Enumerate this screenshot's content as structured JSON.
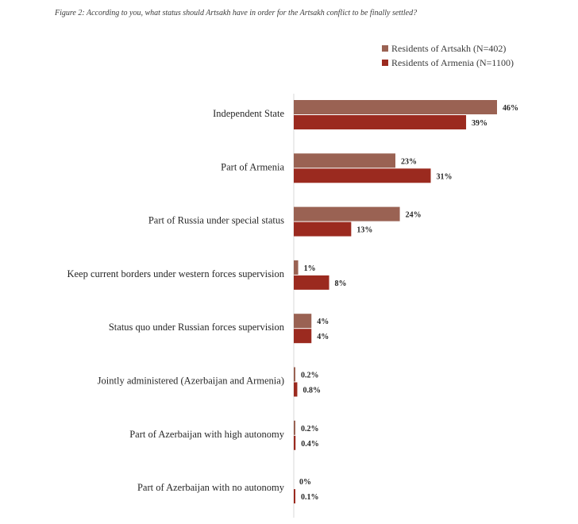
{
  "title": "Figure 2: According to you, what status should Artsakh have in order for the Artsakh conflict to be finally settled?",
  "chart_data": {
    "type": "bar",
    "orientation": "horizontal",
    "title": "Figure 2: According to you, what status should Artsakh have in order for the Artsakh conflict to be finally settled?",
    "categories": [
      "Independent State",
      "Part of Armenia",
      "Part of Russia under special status",
      "Keep current borders under western forces supervision",
      "Status quo under Russian forces supervision",
      "Jointly administered (Azerbaijan and Armenia)",
      "Part of Azerbaijan with high autonomy",
      "Part of Azerbaijan with no autonomy"
    ],
    "series": [
      {
        "name": "Residents of Artsakh (N=402)",
        "color": "#9a6253",
        "values": [
          46,
          23,
          24,
          1,
          4,
          0.2,
          0.2,
          0
        ],
        "labels": [
          "46%",
          "23%",
          "24%",
          "1%",
          "4%",
          "0.2%",
          "0.2%",
          "0%"
        ]
      },
      {
        "name": "Residents of Armenia (N=1100)",
        "color": "#9b2a1f",
        "values": [
          39,
          31,
          13,
          8,
          4,
          0.8,
          0.4,
          0.1
        ],
        "labels": [
          "39%",
          "31%",
          "13%",
          "8%",
          "4%",
          "0.8%",
          "0.4%",
          "0.1%"
        ]
      }
    ],
    "xlim": [
      0,
      50
    ],
    "grid": false,
    "legend_position": "top-right"
  }
}
